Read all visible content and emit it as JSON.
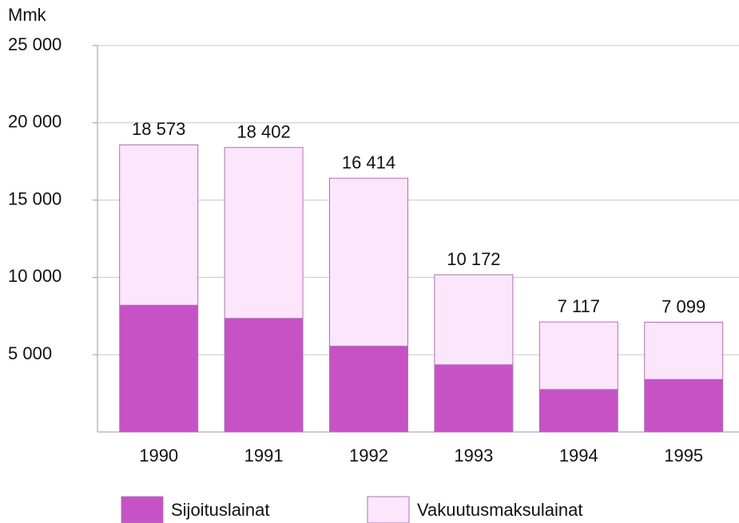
{
  "chart_data": {
    "type": "stacked_bar",
    "y_label": "Mmk",
    "categories": [
      "1990",
      "1991",
      "1992",
      "1993",
      "1994",
      "1995"
    ],
    "series": [
      {
        "name": "Sijoituslainat",
        "color": "#c652c6",
        "values": [
          8200,
          7350,
          5550,
          4350,
          2750,
          3400
        ]
      },
      {
        "name": "Vakuutusmaksulainat",
        "color": "#fce6fc",
        "values": [
          10373,
          11052,
          10864,
          5822,
          4367,
          3699
        ]
      }
    ],
    "totals": [
      18573,
      18402,
      16414,
      10172,
      7117,
      7099
    ],
    "total_labels": [
      "18 573",
      "18 402",
      "16 414",
      "10 172",
      "7 117",
      "7 099"
    ],
    "ylim": [
      0,
      25000
    ],
    "yticks": [
      {
        "value": 5000,
        "label": "5 000"
      },
      {
        "value": 10000,
        "label": "10 000"
      },
      {
        "value": 15000,
        "label": "15 000"
      },
      {
        "value": 20000,
        "label": "20 000"
      },
      {
        "value": 25000,
        "label": "25 000"
      }
    ],
    "grid": true
  }
}
